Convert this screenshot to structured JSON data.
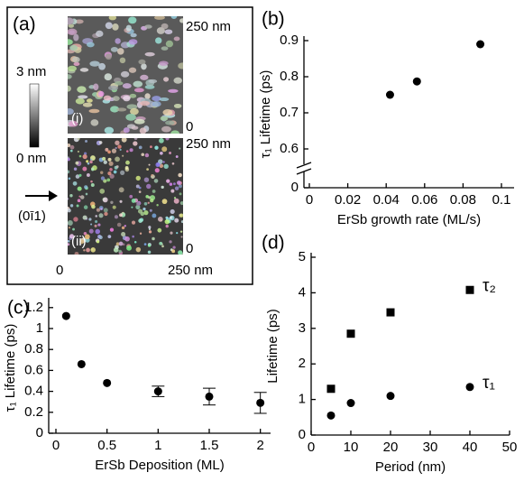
{
  "figure_a": {
    "panel": "(a)",
    "scale_top": "3 nm",
    "scale_bottom": "0 nm",
    "image_1": {
      "label": "(i)",
      "right_top": "250 nm",
      "right_bottom": "0"
    },
    "image_2": {
      "label": "(ii)",
      "right_top": "250 nm",
      "right_bottom": "0"
    },
    "direction": "(0ī1)",
    "x_left": "0",
    "x_right": "250 nm"
  },
  "chart_data": [
    {
      "type": "scatter",
      "panel": "(b)",
      "x_label": "ErSb growth rate (ML/s)",
      "y_label": "τ₁ Lifetime (ps)",
      "xlim": [
        0,
        0.1
      ],
      "xticks": [
        0,
        0.02,
        0.04,
        0.06,
        0.08,
        0.1
      ],
      "ylim": [
        0,
        0.9
      ],
      "yticks": [
        0,
        0.6,
        0.7,
        0.8,
        0.9
      ],
      "axis_break": true,
      "series": [
        {
          "color": "#000000",
          "marker": "circle",
          "x": [
            0.042,
            0.056,
            0.089
          ],
          "values": [
            0.75,
            0.787,
            0.89
          ]
        }
      ]
    },
    {
      "type": "scatter",
      "panel": "(c)",
      "x_label": "ErSb Deposition (ML)",
      "y_label": "τ₁ Lifetime (ps)",
      "xlim": [
        0,
        2.1
      ],
      "xticks": [
        0,
        0.5,
        1,
        1.5,
        2
      ],
      "ylim": [
        0,
        1.25
      ],
      "yticks": [
        0,
        0.2,
        0.4,
        0.6,
        0.8,
        1,
        1.2
      ],
      "series": [
        {
          "color": "#000000",
          "marker": "circle",
          "x": [
            0.1,
            0.25,
            0.5,
            1,
            1.5,
            2
          ],
          "values": [
            1.12,
            0.66,
            0.48,
            0.4,
            0.35,
            0.29
          ],
          "errors": [
            null,
            null,
            null,
            0.05,
            0.08,
            0.1
          ]
        }
      ]
    },
    {
      "type": "scatter",
      "panel": "(d)",
      "x_label": "Period (nm)",
      "y_label": "Lifetime (ps)",
      "xlim": [
        0,
        50
      ],
      "xticks": [
        0,
        10,
        20,
        30,
        40,
        50
      ],
      "ylim": [
        0,
        5
      ],
      "yticks": [
        0,
        1,
        2,
        3,
        4,
        5
      ],
      "series": [
        {
          "name": "τ₂",
          "color": "#000000",
          "marker": "square",
          "x": [
            5,
            10,
            20,
            40
          ],
          "values": [
            1.3,
            2.85,
            3.45,
            4.08
          ]
        },
        {
          "name": "τ₁",
          "color": "#000000",
          "marker": "circle",
          "x": [
            5,
            10,
            20,
            40
          ],
          "values": [
            0.55,
            0.9,
            1.1,
            1.35
          ]
        }
      ]
    }
  ]
}
